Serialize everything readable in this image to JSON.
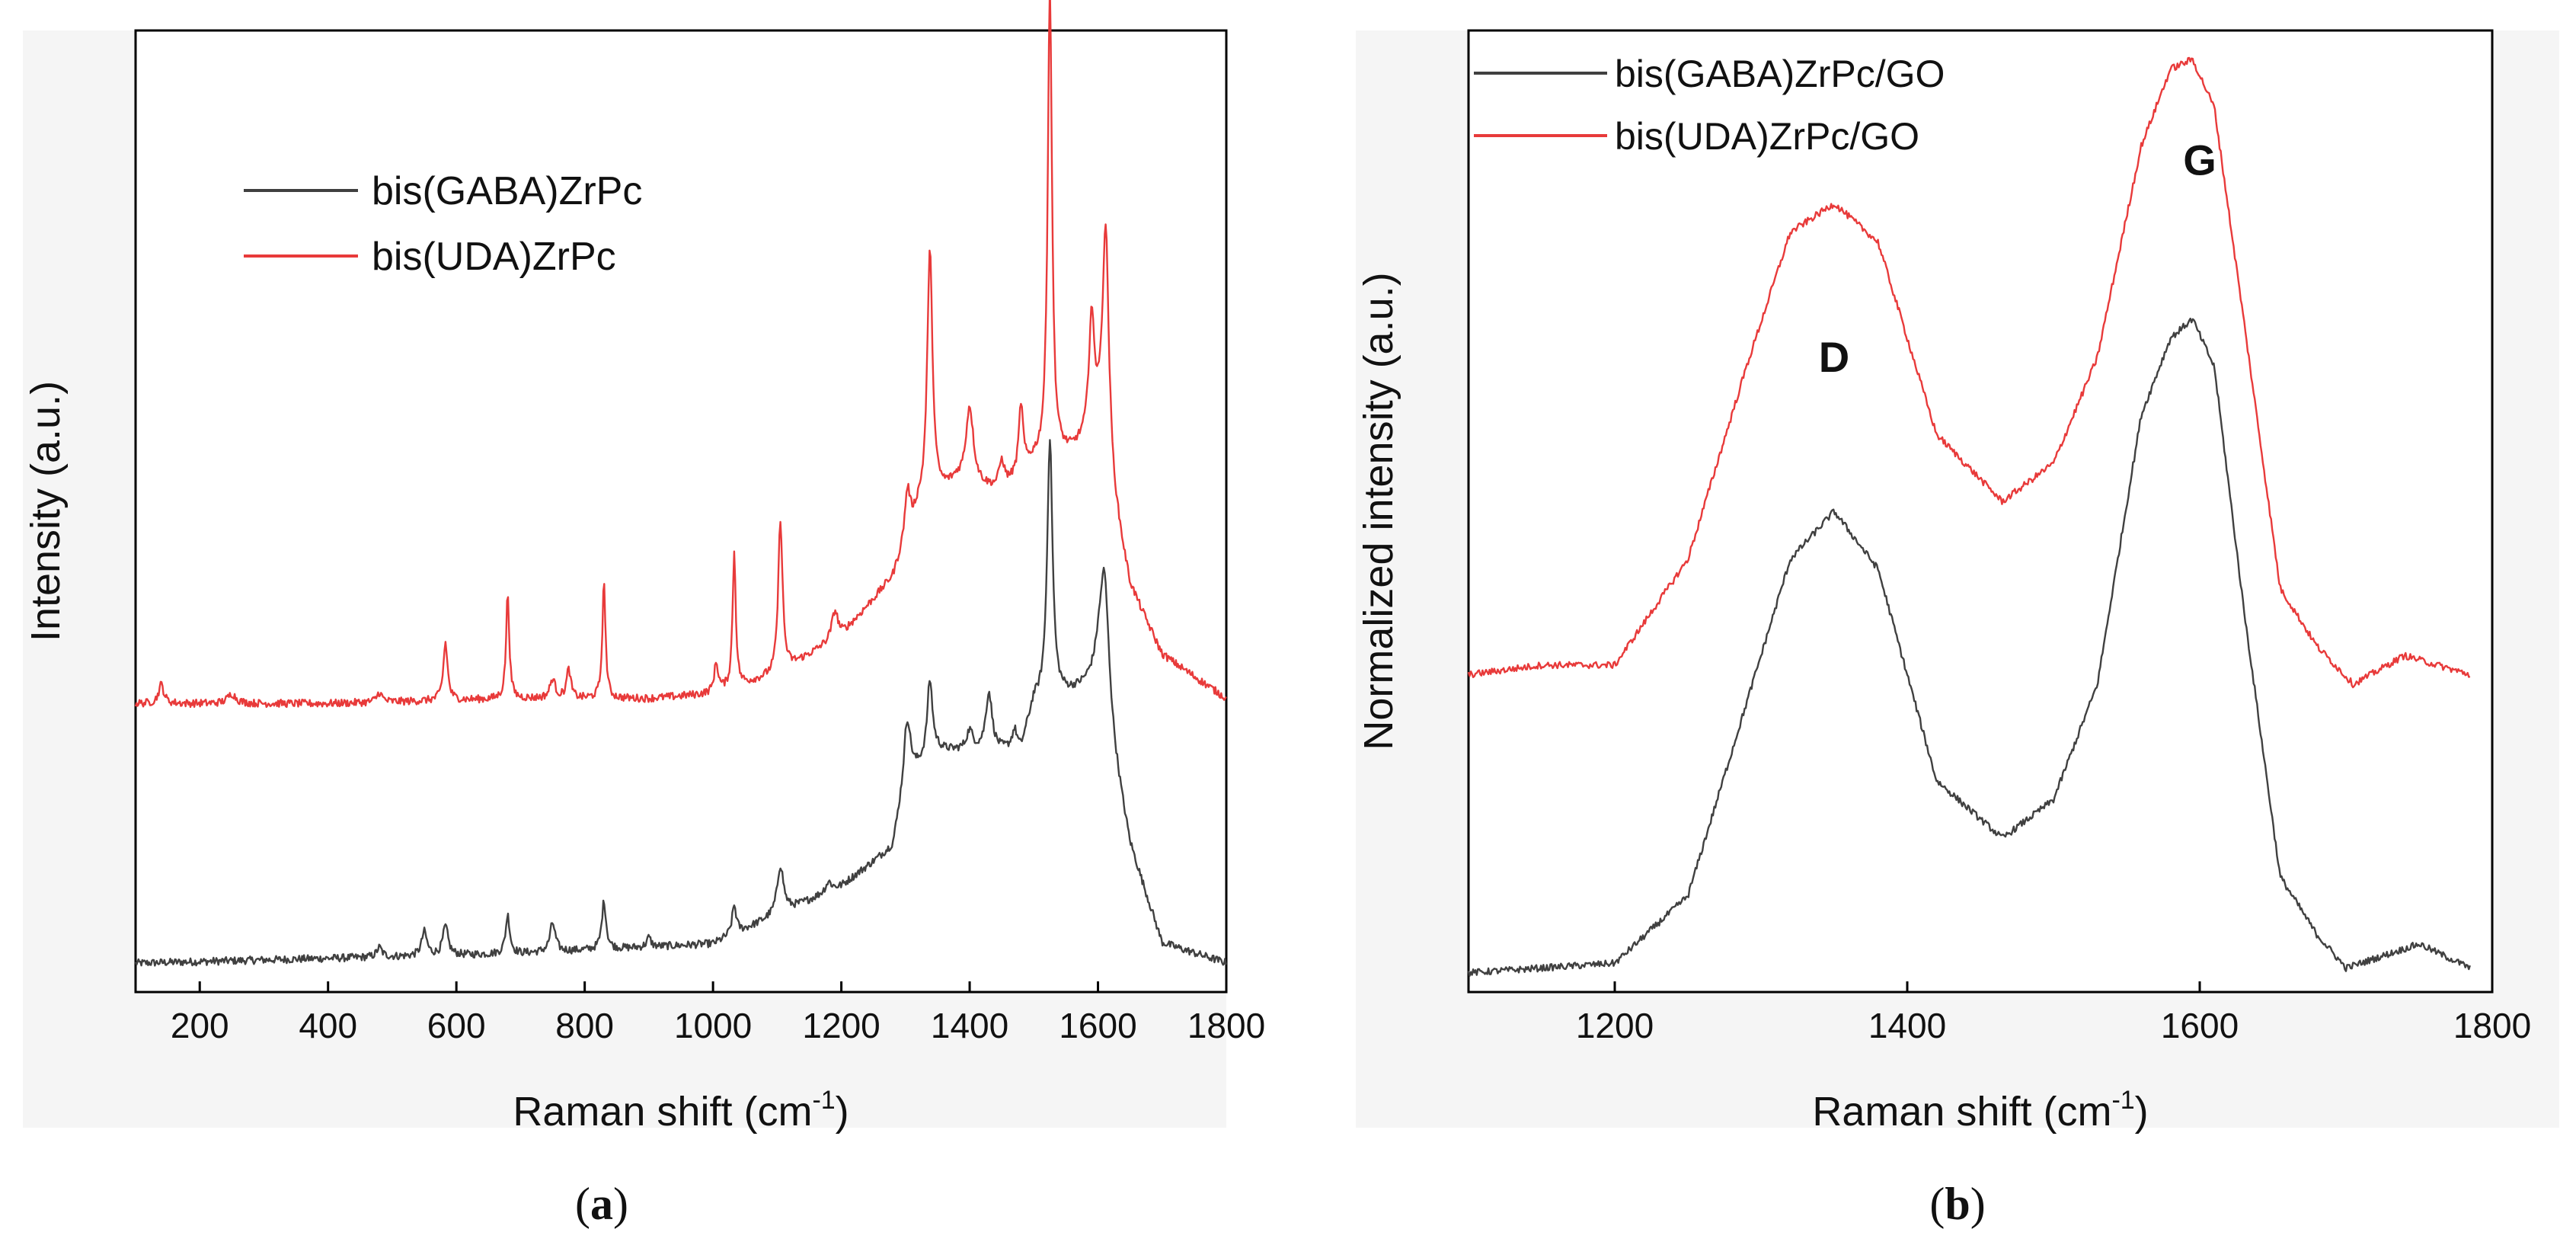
{
  "chart_data": [
    {
      "panel_label": "a",
      "type": "line",
      "title": "",
      "xlabel": "Raman shift (cm",
      "xlabel_sup": "-1",
      "xlabel_close": ")",
      "ylabel": "Intensity (a.u.)",
      "xlim": [
        100,
        1800
      ],
      "ylim": [
        0,
        1
      ],
      "xticks": [
        200,
        400,
        600,
        800,
        1000,
        1200,
        1400,
        1600,
        1800
      ],
      "legend_position": "top-left",
      "series": [
        {
          "name": "bis(GABA)ZrPc",
          "color": "#404040",
          "baseline": [
            [
              100,
              0.03
            ],
            [
              400,
              0.035
            ],
            [
              700,
              0.04
            ],
            [
              1000,
              0.05
            ],
            [
              1100,
              0.08
            ],
            [
              1200,
              0.11
            ],
            [
              1280,
              0.15
            ],
            [
              1300,
              0.22
            ],
            [
              1350,
              0.25
            ],
            [
              1400,
              0.25
            ],
            [
              1480,
              0.25
            ],
            [
              1500,
              0.3
            ],
            [
              1560,
              0.31
            ],
            [
              1600,
              0.32
            ],
            [
              1650,
              0.15
            ],
            [
              1700,
              0.05
            ],
            [
              1800,
              0.03
            ]
          ],
          "peaks": [
            [
              480,
              0.01,
              5
            ],
            [
              550,
              0.025,
              5
            ],
            [
              583,
              0.03,
              5
            ],
            [
              680,
              0.04,
              4
            ],
            [
              750,
              0.03,
              5
            ],
            [
              830,
              0.05,
              4
            ],
            [
              900,
              0.01,
              4
            ],
            [
              1033,
              0.03,
              4
            ],
            [
              1105,
              0.05,
              6
            ],
            [
              1180,
              0.01,
              6
            ],
            [
              1303,
              0.06,
              6
            ],
            [
              1338,
              0.08,
              5
            ],
            [
              1400,
              0.02,
              6
            ],
            [
              1430,
              0.06,
              6
            ],
            [
              1470,
              0.02,
              5
            ],
            [
              1525,
              0.27,
              5
            ],
            [
              1610,
              0.15,
              9
            ]
          ]
        },
        {
          "name": "bis(UDA)ZrPc",
          "color": "#e83a3a",
          "baseline": [
            [
              100,
              0.3
            ],
            [
              400,
              0.3
            ],
            [
              700,
              0.305
            ],
            [
              900,
              0.305
            ],
            [
              1000,
              0.31
            ],
            [
              1100,
              0.33
            ],
            [
              1200,
              0.37
            ],
            [
              1280,
              0.43
            ],
            [
              1320,
              0.5
            ],
            [
              1380,
              0.53
            ],
            [
              1450,
              0.52
            ],
            [
              1500,
              0.55
            ],
            [
              1560,
              0.56
            ],
            [
              1600,
              0.58
            ],
            [
              1650,
              0.42
            ],
            [
              1700,
              0.35
            ],
            [
              1800,
              0.305
            ]
          ],
          "peaks": [
            [
              140,
              0.02,
              5
            ],
            [
              250,
              0.01,
              8
            ],
            [
              480,
              0.01,
              5
            ],
            [
              583,
              0.06,
              4
            ],
            [
              680,
              0.11,
              3
            ],
            [
              750,
              0.02,
              5
            ],
            [
              775,
              0.03,
              4
            ],
            [
              830,
              0.12,
              3
            ],
            [
              1005,
              0.03,
              4
            ],
            [
              1033,
              0.14,
              3
            ],
            [
              1105,
              0.16,
              4
            ],
            [
              1190,
              0.03,
              6
            ],
            [
              1303,
              0.05,
              5
            ],
            [
              1338,
              0.26,
              5
            ],
            [
              1400,
              0.08,
              7
            ],
            [
              1450,
              0.03,
              5
            ],
            [
              1480,
              0.07,
              4
            ],
            [
              1525,
              0.49,
              4
            ],
            [
              1590,
              0.12,
              5
            ],
            [
              1612,
              0.25,
              6
            ]
          ]
        }
      ]
    },
    {
      "panel_label": "b",
      "type": "line",
      "title": "",
      "xlabel": "Raman shift (cm",
      "xlabel_sup": "-1",
      "xlabel_close": ")",
      "ylabel": "Normalized intensity (a.u.)",
      "xlim": [
        1100,
        1800
      ],
      "ylim": [
        0,
        1
      ],
      "xticks": [
        1200,
        1400,
        1600,
        1800
      ],
      "legend_position": "top-left",
      "annotations": [
        {
          "text": "D",
          "x": 1350,
          "y": 0.645
        },
        {
          "text": "G",
          "x": 1600,
          "y": 0.85
        }
      ],
      "series": [
        {
          "name": "bis(GABA)ZrPc/GO",
          "color": "#404040",
          "points": [
            [
              1100,
              0.02
            ],
            [
              1150,
              0.025
            ],
            [
              1200,
              0.03
            ],
            [
              1250,
              0.1
            ],
            [
              1290,
              0.3
            ],
            [
              1320,
              0.45
            ],
            [
              1350,
              0.5
            ],
            [
              1380,
              0.44
            ],
            [
              1420,
              0.22
            ],
            [
              1465,
              0.16
            ],
            [
              1500,
              0.2
            ],
            [
              1530,
              0.32
            ],
            [
              1560,
              0.6
            ],
            [
              1580,
              0.68
            ],
            [
              1595,
              0.7
            ],
            [
              1610,
              0.65
            ],
            [
              1630,
              0.4
            ],
            [
              1655,
              0.12
            ],
            [
              1680,
              0.06
            ],
            [
              1700,
              0.025
            ],
            [
              1750,
              0.05
            ],
            [
              1785,
              0.025
            ]
          ]
        },
        {
          "name": "bis(UDA)ZrPc/GO",
          "color": "#e83a3a",
          "points": [
            [
              1100,
              0.33
            ],
            [
              1150,
              0.34
            ],
            [
              1200,
              0.34
            ],
            [
              1250,
              0.45
            ],
            [
              1290,
              0.65
            ],
            [
              1320,
              0.79
            ],
            [
              1350,
              0.82
            ],
            [
              1380,
              0.78
            ],
            [
              1420,
              0.58
            ],
            [
              1465,
              0.51
            ],
            [
              1500,
              0.55
            ],
            [
              1530,
              0.66
            ],
            [
              1560,
              0.88
            ],
            [
              1580,
              0.96
            ],
            [
              1595,
              0.97
            ],
            [
              1610,
              0.92
            ],
            [
              1630,
              0.7
            ],
            [
              1655,
              0.42
            ],
            [
              1680,
              0.36
            ],
            [
              1705,
              0.32
            ],
            [
              1740,
              0.35
            ],
            [
              1785,
              0.33
            ]
          ]
        }
      ]
    }
  ]
}
